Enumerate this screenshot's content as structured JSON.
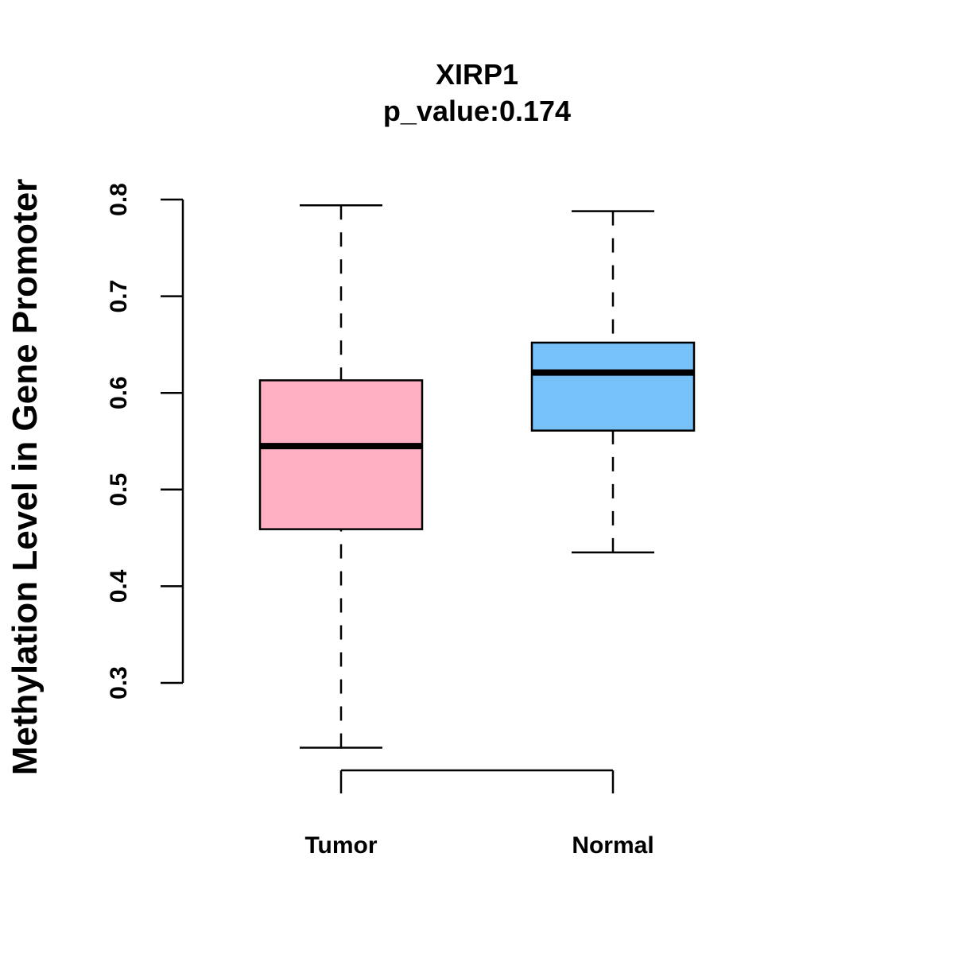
{
  "chart_data": {
    "type": "boxplot",
    "title": "XIRP1",
    "subtitle": "p_value:0.174",
    "xlabel": "",
    "ylabel": "Methylation Level in Gene Promoter",
    "ylim": [
      0.3,
      0.8
    ],
    "yticks": [
      {
        "value": 0.3,
        "label": "0.3"
      },
      {
        "value": 0.4,
        "label": "0.4"
      },
      {
        "value": 0.5,
        "label": "0.5"
      },
      {
        "value": 0.6,
        "label": "0.6"
      },
      {
        "value": 0.7,
        "label": "0.7"
      },
      {
        "value": 0.8,
        "label": "0.8"
      }
    ],
    "categories": [
      "Tumor",
      "Normal"
    ],
    "series": [
      {
        "name": "Tumor",
        "color": "#FFB1C3",
        "whisker_low": 0.233,
        "q1": 0.459,
        "median": 0.545,
        "q3": 0.613,
        "whisker_high": 0.794
      },
      {
        "name": "Normal",
        "color": "#77C1F9",
        "whisker_low": 0.435,
        "q1": 0.561,
        "median": 0.621,
        "q3": 0.652,
        "whisker_high": 0.788
      }
    ],
    "grid": false,
    "legend": "none"
  }
}
